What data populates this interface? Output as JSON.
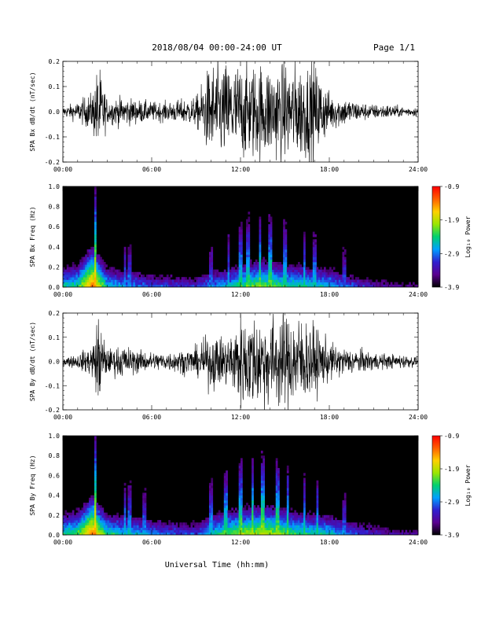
{
  "header": {
    "title": "2018/08/04  00:00-24:00 UT",
    "page": "Page 1/1"
  },
  "footer": {
    "xlabel": "Universal Time (hh:mm)"
  },
  "colors": {
    "trace": "#000000",
    "spectrogram_background": "#000000",
    "colorbar_stops": [
      "#000000",
      "#5a0090",
      "#3020d0",
      "#00a0ff",
      "#00d070",
      "#9ae600",
      "#ffd000",
      "#ff6000",
      "#ff0000"
    ]
  },
  "chart_data": [
    {
      "type": "line",
      "title": "",
      "xlabel": "",
      "ylabel": "SPA Bx dB/dt (nT/sec)",
      "xlim": [
        "00:00",
        "24:00"
      ],
      "ylim": [
        -0.2,
        0.2
      ],
      "x_ticks": [
        "00:00",
        "06:00",
        "12:00",
        "18:00",
        "24:00"
      ],
      "y_ticks": [
        "-0.2",
        "-0.1",
        "0.0",
        "0.1",
        "0.2"
      ],
      "series": [
        {
          "x_hours": [
            0,
            1,
            2,
            2.4,
            3,
            4,
            5,
            6,
            7,
            8,
            9,
            10,
            11,
            12,
            13,
            14,
            15,
            16,
            17,
            18,
            19,
            20,
            21,
            22,
            23,
            24
          ],
          "amplitude_envelope": [
            0.02,
            0.04,
            0.08,
            0.2,
            0.05,
            0.06,
            0.05,
            0.04,
            0.04,
            0.05,
            0.06,
            0.2,
            0.2,
            0.2,
            0.2,
            0.2,
            0.2,
            0.2,
            0.2,
            0.08,
            0.06,
            0.04,
            0.03,
            0.03,
            0.02,
            0.02
          ]
        }
      ],
      "grid": false
    },
    {
      "type": "heatmap",
      "title": "",
      "xlabel": "",
      "ylabel": "SPA Bx Freq (Hz)",
      "xlim": [
        "00:00",
        "24:00"
      ],
      "ylim": [
        0.0,
        1.0
      ],
      "x_ticks": [
        "00:00",
        "06:00",
        "12:00",
        "18:00",
        "24:00"
      ],
      "y_ticks": [
        "0.0",
        "0.2",
        "0.4",
        "0.6",
        "0.8",
        "1.0"
      ],
      "colorbar": {
        "label": "Log₁₀ Power",
        "range": [
          -3.9,
          -0.9
        ],
        "ticks": [
          "-0.9",
          "-1.9",
          "-2.9",
          "-3.9"
        ]
      },
      "bright_time_hours": [
        2.2,
        4.2,
        4.5,
        10.0,
        11.2,
        12.0,
        12.5,
        13.3,
        14.0,
        15.0,
        16.3,
        17.0,
        19.0
      ],
      "low_freq_power_by_hour": [
        -2.5,
        -2.3,
        -1.2,
        -2.5,
        -2.7,
        -2.8,
        -3.0,
        -3.0,
        -3.1,
        -3.1,
        -2.8,
        -2.6,
        -2.3,
        -2.1,
        -2.1,
        -2.3,
        -2.4,
        -2.5,
        -2.6,
        -2.9,
        -3.1,
        -3.3,
        -3.4,
        -3.5,
        -3.5
      ]
    },
    {
      "type": "line",
      "title": "",
      "xlabel": "",
      "ylabel": "SPA By dB/dt (nT/sec)",
      "xlim": [
        "00:00",
        "24:00"
      ],
      "ylim": [
        -0.2,
        0.2
      ],
      "x_ticks": [
        "00:00",
        "06:00",
        "12:00",
        "18:00",
        "24:00"
      ],
      "y_ticks": [
        "-0.2",
        "-0.1",
        "0.0",
        "0.1",
        "0.2"
      ],
      "series": [
        {
          "x_hours": [
            0,
            1,
            2,
            2.4,
            3,
            4,
            5,
            6,
            7,
            8,
            9,
            10,
            11,
            12,
            13,
            14,
            15,
            16,
            17,
            18,
            19,
            20,
            21,
            22,
            23,
            24
          ],
          "amplitude_envelope": [
            0.02,
            0.03,
            0.07,
            0.2,
            0.05,
            0.07,
            0.05,
            0.04,
            0.04,
            0.05,
            0.06,
            0.12,
            0.1,
            0.2,
            0.2,
            0.2,
            0.2,
            0.2,
            0.15,
            0.08,
            0.06,
            0.05,
            0.04,
            0.03,
            0.03,
            0.02
          ]
        }
      ],
      "grid": false
    },
    {
      "type": "heatmap",
      "title": "",
      "xlabel": "",
      "ylabel": "SPA By Freq (Hz)",
      "xlim": [
        "00:00",
        "24:00"
      ],
      "ylim": [
        0.0,
        1.0
      ],
      "x_ticks": [
        "00:00",
        "06:00",
        "12:00",
        "18:00",
        "24:00"
      ],
      "y_ticks": [
        "0.0",
        "0.2",
        "0.4",
        "0.6",
        "0.8",
        "1.0"
      ],
      "colorbar": {
        "label": "Log₁₀ Power",
        "range": [
          -3.9,
          -0.9
        ],
        "ticks": [
          "-0.9",
          "-1.9",
          "-2.9",
          "-3.9"
        ]
      },
      "bright_time_hours": [
        2.2,
        4.2,
        4.5,
        5.5,
        10.0,
        11.0,
        12.0,
        12.8,
        13.5,
        14.5,
        15.2,
        16.3,
        17.2,
        19.0
      ],
      "low_freq_power_by_hour": [
        -2.4,
        -2.2,
        -1.2,
        -2.4,
        -2.5,
        -2.6,
        -2.8,
        -2.9,
        -3.0,
        -3.0,
        -2.5,
        -2.2,
        -2.0,
        -1.9,
        -1.9,
        -2.1,
        -2.3,
        -2.4,
        -2.5,
        -2.8,
        -3.0,
        -3.2,
        -3.3,
        -3.4,
        -3.4
      ]
    }
  ]
}
